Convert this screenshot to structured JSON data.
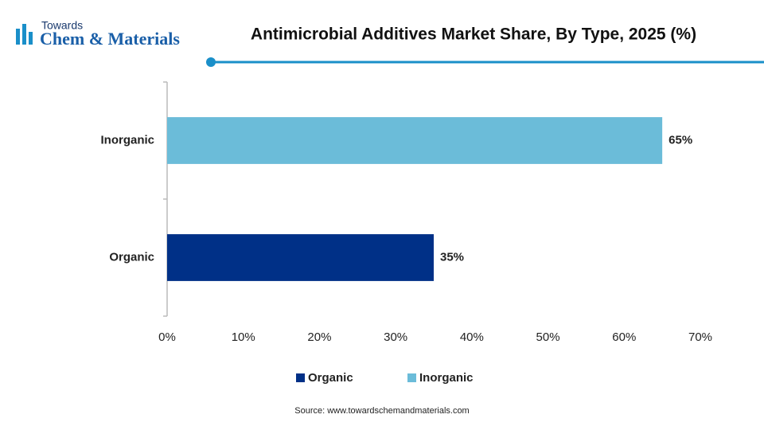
{
  "header": {
    "logo_top": "Towards",
    "logo_main": "Chem & Materials"
  },
  "chart_data": {
    "type": "hbar",
    "title": "Antimicrobial Additives Market Share, By Type, 2025 (%)",
    "categories": [
      "Inorganic",
      "Organic"
    ],
    "series": [
      {
        "name": "Organic",
        "color": "#003087",
        "values": [
          null,
          35
        ],
        "value_labels": [
          null,
          "35%"
        ]
      },
      {
        "name": "Inorganic",
        "color": "#6bbcd9",
        "values": [
          65,
          null
        ],
        "value_labels": [
          "65%",
          null
        ]
      }
    ],
    "xlim": [
      0,
      70
    ],
    "xticks": [
      {
        "value": 0,
        "label": "0%"
      },
      {
        "value": 10,
        "label": "10%"
      },
      {
        "value": 20,
        "label": "20%"
      },
      {
        "value": 30,
        "label": "30%"
      },
      {
        "value": 40,
        "label": "40%"
      },
      {
        "value": 50,
        "label": "50%"
      },
      {
        "value": 60,
        "label": "60%"
      },
      {
        "value": 70,
        "label": "70%"
      }
    ],
    "grid": false,
    "legend": "bottom",
    "source": "Source: www.towardschemandmaterials.com"
  }
}
